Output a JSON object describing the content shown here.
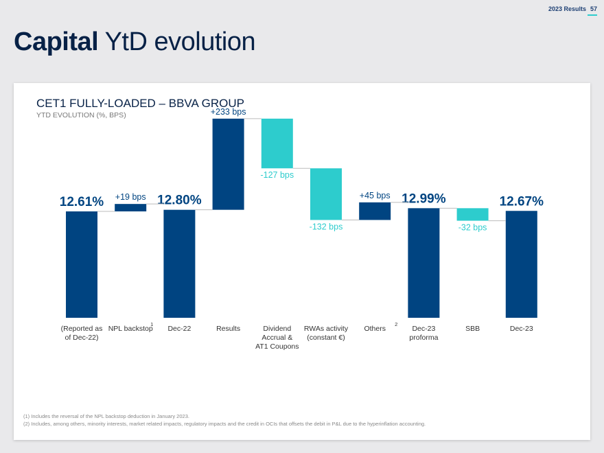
{
  "header": {
    "report": "2023 Results",
    "page": "57"
  },
  "title": {
    "bold": "Capital",
    "light": "YtD evolution"
  },
  "card": {
    "title": "CET1 FULLY-LOADED – BBVA GROUP",
    "subtitle": "YTD EVOLUTION (%, BPS)"
  },
  "colors": {
    "dark": "#004481",
    "accent": "#2dcccd",
    "text": "#072146"
  },
  "chart_data": {
    "type": "bar",
    "subtype": "waterfall",
    "unit": "%",
    "categories": [
      "(Reported as of Dec-22)",
      "NPL backstop",
      "Dec-22",
      "Results",
      "Dividend Accrual & AT1 Coupons",
      "RWAs activity (constant €)",
      "Others",
      "Dec-23 proforma",
      "SBB",
      "Dec-23"
    ],
    "category_lines": [
      [
        "(Reported as",
        "of Dec-22)"
      ],
      [
        "NPL backstop"
      ],
      [
        "Dec-22"
      ],
      [
        "Results"
      ],
      [
        "Dividend",
        "Accrual  &",
        "AT1 Coupons"
      ],
      [
        "RWAs activity",
        "(constant €)"
      ],
      [
        "Others"
      ],
      [
        "Dec-23",
        "proforma"
      ],
      [
        "SBB"
      ],
      [
        "Dec-23"
      ]
    ],
    "superscripts": [
      "",
      "1",
      "",
      "",
      "",
      "",
      "2",
      "",
      "",
      ""
    ],
    "bars": [
      {
        "kind": "total",
        "value": 12.61,
        "label": "12.61%"
      },
      {
        "kind": "delta",
        "value": 0.19,
        "label": "+19 bps"
      },
      {
        "kind": "total",
        "value": 12.8,
        "label": "12.80%"
      },
      {
        "kind": "delta",
        "value": 2.33,
        "label": "+233 bps"
      },
      {
        "kind": "delta",
        "value": -1.27,
        "label": "-127 bps"
      },
      {
        "kind": "delta",
        "value": -1.32,
        "label": "-132 bps"
      },
      {
        "kind": "delta",
        "value": 0.45,
        "label": "+45 bps"
      },
      {
        "kind": "total",
        "value": 12.99,
        "label": "12.99%"
      },
      {
        "kind": "delta",
        "value": -0.32,
        "label": "-32 bps"
      },
      {
        "kind": "total",
        "value": 12.67,
        "label": "12.67%"
      }
    ]
  },
  "footnotes": [
    "(1) Includes the reversal of the NPL backstop deduction in January 2023.",
    "(2) Includes, among others, minority interests, market related impacts, regulatory impacts and the credit in OCIs that offsets the debit in P&L due to the hyperinflation accounting."
  ]
}
